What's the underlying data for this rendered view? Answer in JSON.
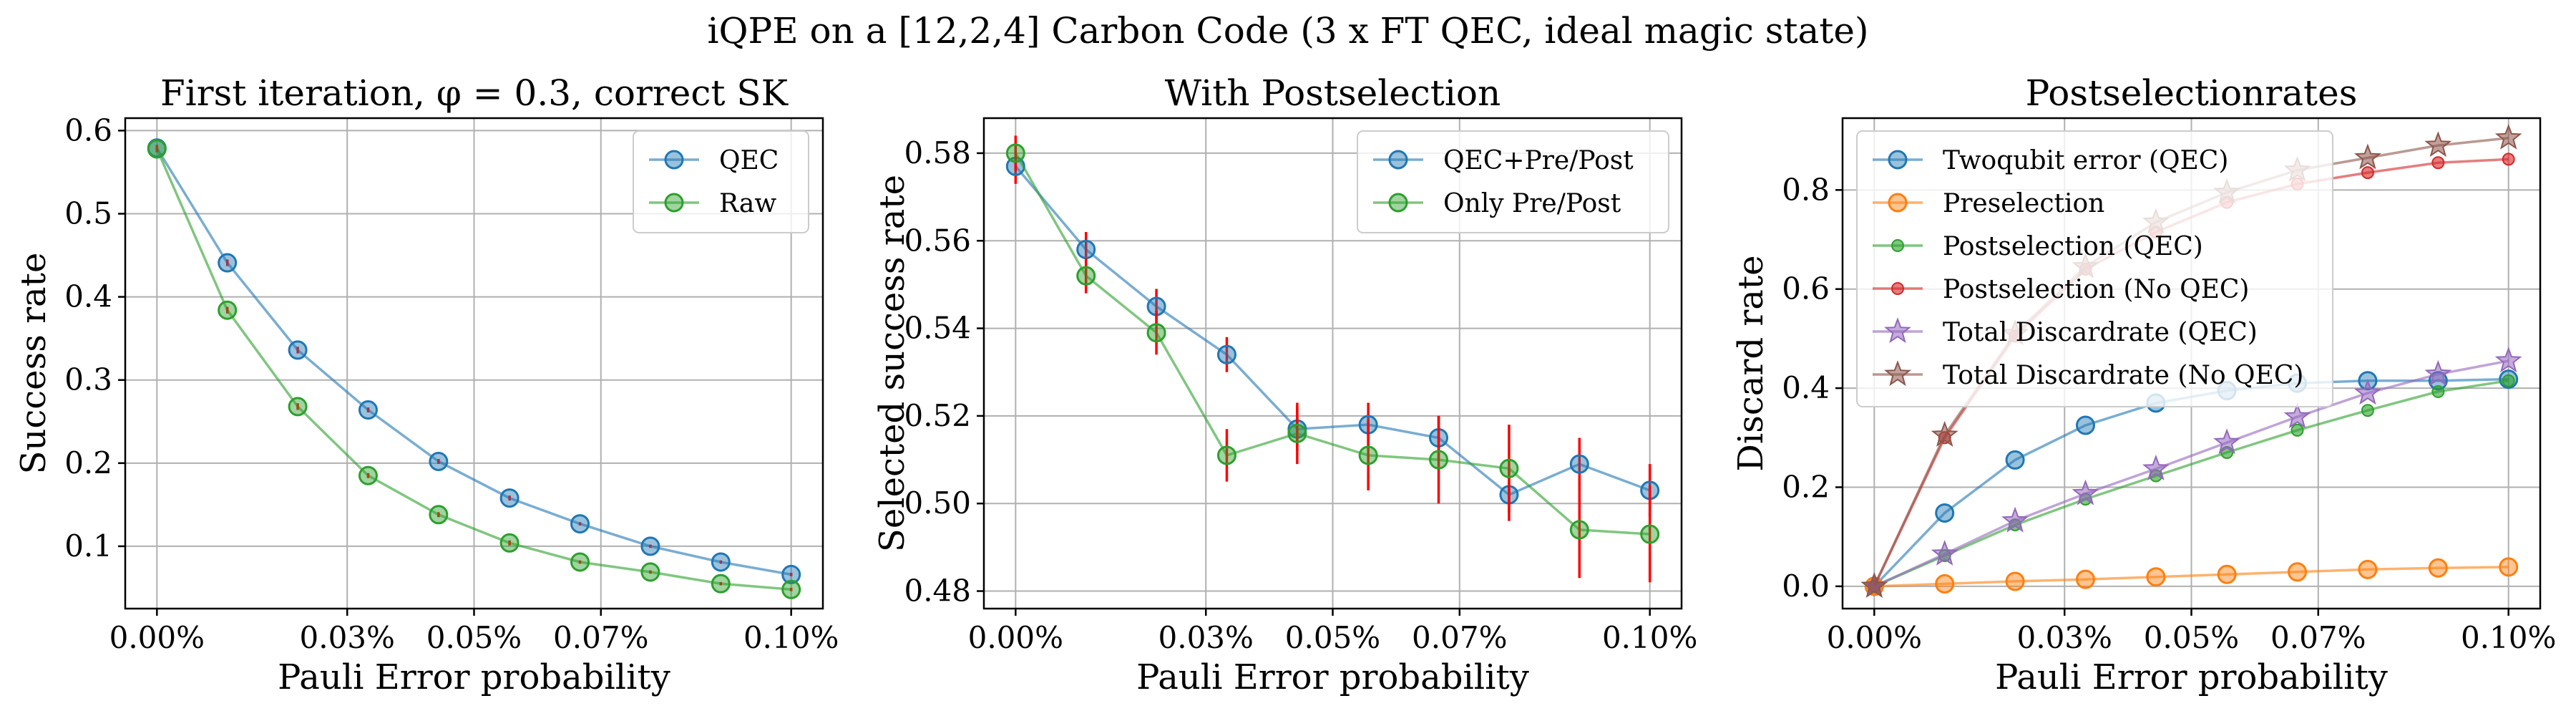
{
  "suptitle": "iQPE on a [12,2,4] Carbon Code (3 x FT QEC, ideal magic state)",
  "colors": {
    "blue": "#1f77b4",
    "orange": "#ff7f0e",
    "green": "#2ca02c",
    "red": "#d62728",
    "purple": "#9467bd",
    "brown": "#8c564b",
    "errorbar": "#ff0000"
  },
  "chart_data": [
    {
      "type": "line",
      "title": "First iteration, φ = 0.3, correct SK",
      "xlabel": "Pauli Error probability",
      "ylabel": "Success rate",
      "xlim": [
        -5e-05,
        0.00105
      ],
      "ylim": [
        0.025,
        0.615
      ],
      "xticks": [
        0,
        0.0003,
        0.0005,
        0.0007,
        0.001
      ],
      "xtick_labels": [
        "0.00%",
        "0.03%",
        "0.05%",
        "0.07%",
        "0.10%"
      ],
      "yticks": [
        0.1,
        0.2,
        0.3,
        0.4,
        0.5,
        0.6
      ],
      "ytick_labels": [
        "0.1",
        "0.2",
        "0.3",
        "0.4",
        "0.5",
        "0.6"
      ],
      "legend_position": "top-right",
      "x": [
        0,
        0.000111,
        0.000222,
        0.000333,
        0.000444,
        0.000556,
        0.000667,
        0.000778,
        0.000889,
        0.001
      ],
      "series": [
        {
          "name": "QEC",
          "color": "blue",
          "marker": "circle",
          "values": [
            0.579,
            0.441,
            0.336,
            0.264,
            0.202,
            0.158,
            0.127,
            0.1,
            0.081,
            0.066
          ],
          "errors": [
            0.004,
            0.004,
            0.004,
            0.003,
            0.003,
            0.003,
            0.002,
            0.002,
            0.002,
            0.002
          ]
        },
        {
          "name": "Raw",
          "color": "green",
          "marker": "circle",
          "values": [
            0.578,
            0.384,
            0.268,
            0.185,
            0.138,
            0.104,
            0.081,
            0.069,
            0.055,
            0.048
          ],
          "errors": [
            0.004,
            0.004,
            0.004,
            0.003,
            0.003,
            0.003,
            0.002,
            0.002,
            0.002,
            0.002
          ]
        }
      ]
    },
    {
      "type": "line",
      "title": "With Postselection",
      "xlabel": "Pauli Error probability",
      "ylabel": "Selected success rate",
      "xlim": [
        -5e-05,
        0.00105
      ],
      "ylim": [
        0.476,
        0.588
      ],
      "xticks": [
        0,
        0.0003,
        0.0005,
        0.0007,
        0.001
      ],
      "xtick_labels": [
        "0.00%",
        "0.03%",
        "0.05%",
        "0.07%",
        "0.10%"
      ],
      "yticks": [
        0.48,
        0.5,
        0.52,
        0.54,
        0.56,
        0.58
      ],
      "ytick_labels": [
        "0.48",
        "0.50",
        "0.52",
        "0.54",
        "0.56",
        "0.58"
      ],
      "legend_position": "top-right",
      "x": [
        0,
        0.000111,
        0.000222,
        0.000333,
        0.000444,
        0.000556,
        0.000667,
        0.000778,
        0.000889,
        0.001
      ],
      "series": [
        {
          "name": "QEC+Pre/Post",
          "color": "blue",
          "marker": "circle",
          "values": [
            0.577,
            0.558,
            0.545,
            0.534,
            0.517,
            0.518,
            0.515,
            0.502,
            0.509,
            0.503
          ],
          "errors": [
            0.004,
            0.004,
            0.004,
            0.004,
            0.005,
            0.005,
            0.005,
            0.006,
            0.006,
            0.006
          ]
        },
        {
          "name": "Only Pre/Post",
          "color": "green",
          "marker": "circle",
          "values": [
            0.58,
            0.552,
            0.539,
            0.511,
            0.516,
            0.511,
            0.51,
            0.508,
            0.494,
            0.493
          ],
          "errors": [
            0.004,
            0.004,
            0.005,
            0.006,
            0.007,
            0.008,
            0.01,
            0.01,
            0.011,
            0.011
          ]
        }
      ]
    },
    {
      "type": "line",
      "title": "Postselectionrates",
      "xlabel": "Pauli Error probability",
      "ylabel": "Discard rate",
      "xlim": [
        -5e-05,
        0.00105
      ],
      "ylim": [
        -0.045,
        0.945
      ],
      "xticks": [
        0,
        0.0003,
        0.0005,
        0.0007,
        0.001
      ],
      "xtick_labels": [
        "0.00%",
        "0.03%",
        "0.05%",
        "0.07%",
        "0.10%"
      ],
      "yticks": [
        0.0,
        0.2,
        0.4,
        0.6,
        0.8
      ],
      "ytick_labels": [
        "0.0",
        "0.2",
        "0.4",
        "0.6",
        "0.8"
      ],
      "legend_position": "top-left",
      "x": [
        0,
        0.000111,
        0.000222,
        0.000333,
        0.000444,
        0.000556,
        0.000667,
        0.000778,
        0.000889,
        0.001
      ],
      "series": [
        {
          "name": "Twoqubit error (QEC)",
          "color": "blue",
          "marker": "circle",
          "values": [
            0.0,
            0.148,
            0.255,
            0.325,
            0.37,
            0.395,
            0.41,
            0.415,
            0.415,
            0.418
          ]
        },
        {
          "name": "Preselection",
          "color": "orange",
          "marker": "circle",
          "values": [
            0.0,
            0.005,
            0.01,
            0.014,
            0.019,
            0.024,
            0.029,
            0.034,
            0.037,
            0.039
          ]
        },
        {
          "name": "Postselection (QEC)",
          "color": "green",
          "marker": "dot",
          "values": [
            0.0,
            0.062,
            0.124,
            0.176,
            0.223,
            0.27,
            0.315,
            0.355,
            0.393,
            0.415
          ]
        },
        {
          "name": "Postselection (No QEC)",
          "color": "red",
          "marker": "dot",
          "values": [
            0.0,
            0.3,
            0.505,
            0.64,
            0.715,
            0.775,
            0.812,
            0.835,
            0.855,
            0.862
          ]
        },
        {
          "name": "Total Discardrate (QEC)",
          "color": "purple",
          "marker": "star",
          "values": [
            0.0,
            0.065,
            0.132,
            0.187,
            0.237,
            0.29,
            0.342,
            0.39,
            0.428,
            0.455
          ]
        },
        {
          "name": "Total Discardrate (No QEC)",
          "color": "brown",
          "marker": "star",
          "values": [
            0.0,
            0.305,
            0.51,
            0.645,
            0.735,
            0.795,
            0.84,
            0.865,
            0.89,
            0.905
          ]
        }
      ]
    }
  ]
}
